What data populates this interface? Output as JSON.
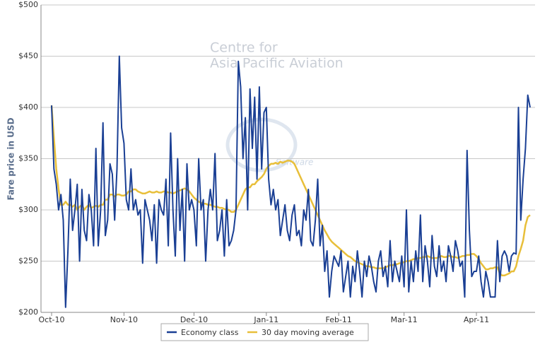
{
  "chart_data": {
    "type": "line",
    "y_label": "Fare price in USD",
    "annotations": [
      "Centre for",
      "Asia Pacific Aviation",
      "Software"
    ],
    "categories": [
      "Oct-10",
      null,
      null,
      null,
      null,
      null,
      null,
      null,
      null,
      null,
      null,
      null,
      null,
      null,
      null,
      null,
      null,
      null,
      null,
      null,
      null,
      null,
      null,
      null,
      null,
      null,
      null,
      null,
      null,
      null,
      null,
      "Nov-10",
      null,
      null,
      null,
      null,
      null,
      null,
      null,
      null,
      null,
      null,
      null,
      null,
      null,
      null,
      null,
      null,
      null,
      null,
      null,
      null,
      null,
      null,
      null,
      null,
      null,
      null,
      null,
      null,
      null,
      "Dec-10",
      null,
      null,
      null,
      null,
      null,
      null,
      null,
      null,
      null,
      null,
      null,
      null,
      null,
      null,
      null,
      null,
      null,
      null,
      null,
      null,
      null,
      null,
      null,
      null,
      null,
      null,
      null,
      null,
      null,
      null,
      "Jan-11",
      null,
      null,
      null,
      null,
      null,
      null,
      null,
      null,
      null,
      null,
      null,
      null,
      null,
      null,
      null,
      null,
      null,
      null,
      null,
      null,
      null,
      null,
      null,
      null,
      null,
      null,
      null,
      null,
      null,
      null,
      "Feb-11",
      null,
      null,
      null,
      null,
      null,
      null,
      null,
      null,
      null,
      null,
      null,
      null,
      null,
      null,
      null,
      null,
      null,
      null,
      null,
      null,
      null,
      null,
      null,
      null,
      null,
      null,
      null,
      "Mar-11",
      null,
      null,
      null,
      null,
      null,
      null,
      null,
      null,
      null,
      null,
      null,
      null,
      null,
      null,
      null,
      null,
      null,
      null,
      null,
      null,
      null,
      null,
      null,
      null,
      null,
      null,
      null,
      null,
      null,
      null,
      "Apr-11",
      null,
      null,
      null,
      null,
      null,
      null,
      null,
      null,
      null,
      null,
      null,
      null,
      null,
      null,
      null,
      null,
      null,
      null,
      null,
      null,
      null,
      null,
      null
    ],
    "series": [
      {
        "name": "Economy class",
        "color": "#1a3f94",
        "values": [
          402,
          340,
          325,
          300,
          315,
          290,
          205,
          260,
          330,
          280,
          300,
          325,
          250,
          320,
          280,
          270,
          315,
          300,
          265,
          360,
          265,
          300,
          385,
          275,
          290,
          345,
          335,
          290,
          340,
          450,
          380,
          365,
          310,
          300,
          340,
          300,
          310,
          295,
          300,
          248,
          310,
          300,
          290,
          270,
          305,
          248,
          310,
          300,
          295,
          330,
          265,
          375,
          300,
          255,
          350,
          280,
          320,
          250,
          345,
          300,
          310,
          300,
          265,
          350,
          300,
          310,
          250,
          300,
          320,
          300,
          355,
          270,
          280,
          300,
          255,
          310,
          265,
          270,
          280,
          300,
          445,
          420,
          350,
          390,
          300,
          418,
          360,
          410,
          330,
          420,
          340,
          395,
          400,
          330,
          305,
          320,
          300,
          310,
          275,
          290,
          305,
          280,
          270,
          295,
          305,
          275,
          280,
          265,
          300,
          290,
          320,
          270,
          265,
          290,
          330,
          265,
          285,
          240,
          260,
          215,
          240,
          255,
          250,
          245,
          260,
          220,
          235,
          250,
          215,
          245,
          230,
          260,
          240,
          215,
          250,
          235,
          255,
          245,
          230,
          220,
          250,
          260,
          235,
          245,
          225,
          270,
          230,
          250,
          240,
          230,
          255,
          225,
          300,
          220,
          250,
          230,
          260,
          240,
          295,
          230,
          265,
          250,
          225,
          275,
          245,
          235,
          265,
          240,
          250,
          230,
          265,
          255,
          240,
          270,
          260,
          245,
          250,
          215,
          358,
          280,
          235,
          240,
          240,
          255,
          230,
          215,
          240,
          230,
          215,
          215,
          215,
          270,
          230,
          255,
          260,
          255,
          240,
          255,
          258,
          257,
          400,
          290,
          330,
          360,
          412,
          400
        ]
      },
      {
        "name": "30 day moving average",
        "color": "#e8bf3a",
        "values": [
          402,
          370,
          340,
          320,
          305,
          305,
          308,
          305,
          305,
          303,
          305,
          300,
          303,
          305,
          300,
          303,
          305,
          302,
          303,
          304,
          303,
          305,
          305,
          310,
          310,
          315,
          315,
          313,
          315,
          315,
          314,
          314,
          315,
          318,
          318,
          320,
          320,
          318,
          317,
          316,
          316,
          317,
          318,
          317,
          317,
          318,
          317,
          317,
          318,
          318,
          317,
          317,
          316,
          317,
          318,
          319,
          320,
          321,
          320,
          318,
          315,
          312,
          310,
          308,
          307,
          306,
          306,
          305,
          305,
          304,
          303,
          303,
          302,
          302,
          301,
          300,
          300,
          298,
          298,
          300,
          305,
          310,
          315,
          320,
          322,
          322,
          325,
          325,
          328,
          330,
          332,
          335,
          340,
          343,
          345,
          345,
          346,
          345,
          347,
          346,
          347,
          348,
          348,
          347,
          345,
          340,
          335,
          330,
          325,
          320,
          315,
          310,
          305,
          300,
          295,
          290,
          285,
          280,
          276,
          272,
          269,
          267,
          265,
          263,
          261,
          259,
          257,
          255,
          254,
          252,
          250,
          249,
          248,
          247,
          246,
          245,
          245,
          244,
          244,
          243,
          243,
          243,
          243,
          244,
          245,
          246,
          246,
          247,
          247,
          248,
          248,
          249,
          250,
          250,
          251,
          252,
          252,
          253,
          253,
          254,
          254,
          255,
          254,
          253,
          253,
          253,
          254,
          255,
          254,
          254,
          255,
          255,
          254,
          254,
          253,
          254,
          255,
          255,
          256,
          256,
          257,
          257,
          255,
          252,
          248,
          245,
          242,
          242,
          243,
          243,
          244,
          244,
          238,
          236,
          236,
          237,
          238,
          240,
          240,
          245,
          255,
          262,
          270,
          285,
          293,
          295
        ]
      }
    ],
    "ylim": [
      200,
      500
    ],
    "yticks": [
      {
        "value": 200,
        "label": "$200"
      },
      {
        "value": 250,
        "label": "$250"
      },
      {
        "value": 300,
        "label": "$300"
      },
      {
        "value": 350,
        "label": "$350"
      },
      {
        "value": 400,
        "label": "$400"
      },
      {
        "value": 450,
        "label": "$450"
      },
      {
        "value": 500,
        "label": "$500"
      }
    ],
    "grid": true,
    "legend": "bottom"
  }
}
